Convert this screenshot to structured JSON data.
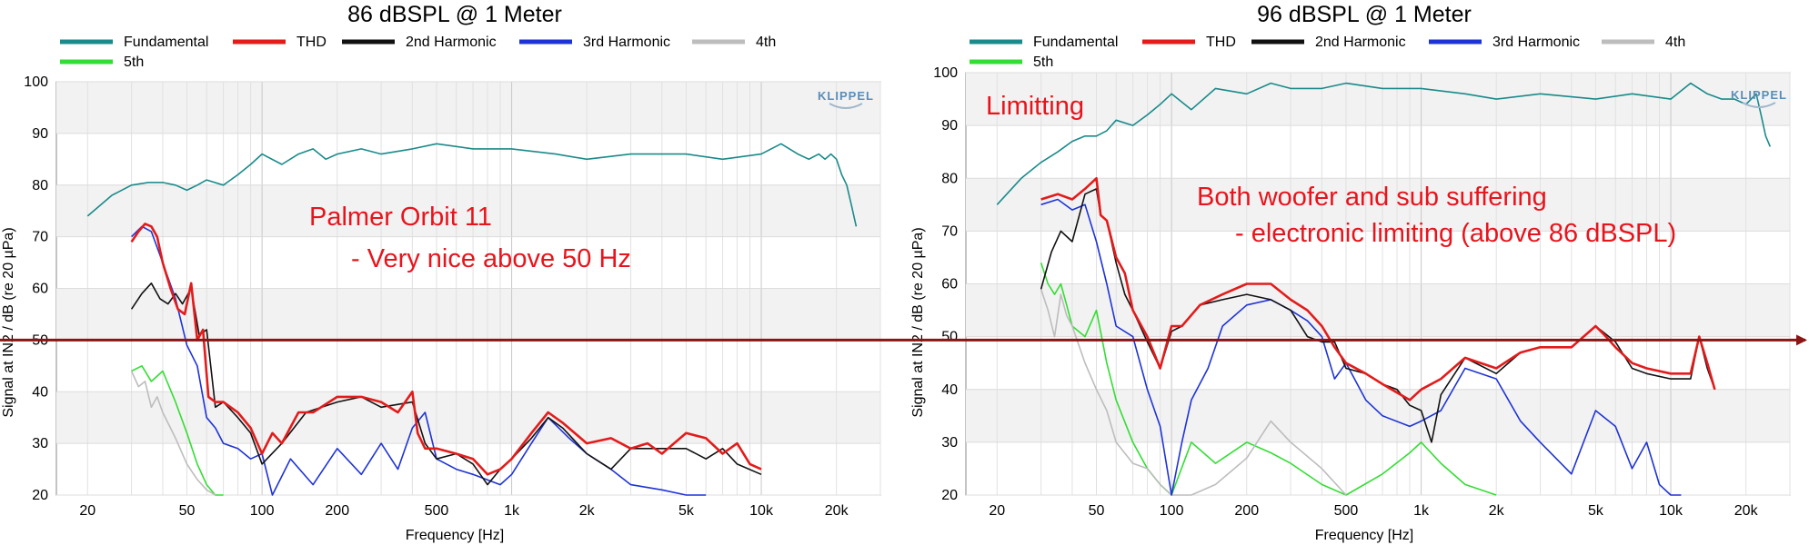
{
  "chart_data": [
    {
      "type": "line",
      "title": "86 dBSPL @ 1 Meter",
      "xlabel": "Frequency [Hz]",
      "ylabel": "Signal at IN2 / dB (re 20 µPa)",
      "xscale": "log",
      "xlim": [
        15,
        30000
      ],
      "ylim": [
        20,
        100
      ],
      "xticks": [
        20,
        50,
        100,
        200,
        500,
        1000,
        2000,
        5000,
        10000,
        20000
      ],
      "xtick_labels": [
        "20",
        "50",
        "100",
        "200",
        "500",
        "1k",
        "2k",
        "5k",
        "10k",
        "20k"
      ],
      "yticks": [
        20,
        30,
        40,
        50,
        60,
        70,
        80,
        90,
        100
      ],
      "grid": true,
      "legend_position": "top",
      "logo": "KLIPPEL",
      "annotations": [
        "Palmer Orbit 11",
        "-  Very nice above 50 Hz"
      ],
      "reference_line": 50,
      "series": [
        {
          "name": "Fundamental",
          "color": "#1a8a8a",
          "x": [
            20,
            25,
            30,
            35,
            40,
            45,
            50,
            55,
            60,
            70,
            80,
            90,
            100,
            120,
            140,
            160,
            180,
            200,
            250,
            300,
            400,
            500,
            700,
            1000,
            1500,
            2000,
            3000,
            5000,
            7000,
            10000,
            12000,
            14000,
            15500,
            17000,
            18000,
            19000,
            20000,
            21000,
            22000,
            23000,
            24000
          ],
          "y": [
            74,
            78,
            80,
            80.5,
            80.5,
            80,
            79,
            80,
            81,
            80,
            82,
            84,
            86,
            84,
            86,
            87,
            85,
            86,
            87,
            86,
            87,
            88,
            87,
            87,
            86,
            85,
            86,
            86,
            85,
            86,
            88,
            86,
            85,
            86,
            85,
            86,
            85,
            82,
            80,
            76,
            72
          ]
        },
        {
          "name": "THD",
          "color": "#e31b1b",
          "x": [
            30,
            32,
            34,
            36,
            38,
            40,
            43,
            46,
            49,
            52,
            55,
            58,
            61,
            65,
            70,
            80,
            90,
            100,
            110,
            120,
            140,
            160,
            200,
            250,
            300,
            350,
            400,
            420,
            450,
            500,
            600,
            700,
            800,
            900,
            1000,
            1200,
            1400,
            1600,
            2000,
            2500,
            3000,
            3500,
            4000,
            5000,
            6000,
            7000,
            8000,
            9000,
            10000
          ],
          "y": [
            69,
            71,
            72.5,
            72,
            70,
            65,
            60,
            56,
            55,
            61,
            50,
            52,
            39,
            38,
            38,
            36,
            33,
            28,
            32,
            30,
            36,
            36,
            39,
            39,
            38,
            36,
            40,
            32,
            29,
            29,
            28,
            27,
            24,
            25,
            27,
            32,
            36,
            34,
            30,
            31,
            29,
            30,
            28,
            32,
            31,
            28,
            30,
            26,
            25
          ]
        },
        {
          "name": "2nd Harmonic",
          "color": "#111111",
          "x": [
            30,
            33,
            36,
            39,
            42,
            45,
            48,
            52,
            56,
            60,
            65,
            70,
            80,
            90,
            100,
            120,
            150,
            200,
            250,
            300,
            400,
            450,
            500,
            600,
            700,
            800,
            900,
            1000,
            1200,
            1400,
            1600,
            2000,
            2500,
            3000,
            4000,
            5000,
            6000,
            7000,
            8000,
            10000
          ],
          "y": [
            56,
            59,
            61,
            58,
            57,
            59,
            57,
            60,
            51,
            52,
            37,
            38,
            35,
            32,
            26,
            30,
            36,
            38,
            39,
            37,
            38,
            30,
            27,
            28,
            26,
            22,
            25,
            27,
            31,
            35,
            33,
            28,
            25,
            29,
            29,
            29,
            27,
            29,
            26,
            24
          ]
        },
        {
          "name": "3rd Harmonic",
          "color": "#1e33d6",
          "x": [
            30,
            33,
            36,
            40,
            45,
            50,
            55,
            60,
            65,
            70,
            80,
            90,
            100,
            110,
            130,
            160,
            200,
            250,
            300,
            350,
            400,
            450,
            500,
            600,
            700,
            900,
            1000,
            1200,
            1400,
            1700,
            2000,
            2500,
            3000,
            4000,
            5000,
            6000
          ],
          "y": [
            70,
            72,
            71,
            65,
            58,
            49,
            45,
            35,
            33,
            30,
            29,
            27,
            28,
            20,
            27,
            22,
            29,
            24,
            30,
            25,
            33,
            36,
            27,
            25,
            24,
            22,
            24,
            30,
            35,
            31,
            28,
            25,
            22,
            21,
            20,
            20
          ]
        },
        {
          "name": "4th",
          "color": "#bdbdbd",
          "x": [
            30,
            32,
            34,
            36,
            38,
            40,
            45,
            50,
            55,
            60,
            65
          ],
          "y": [
            44,
            41,
            42,
            37,
            39,
            36,
            31,
            26,
            23,
            21,
            20
          ]
        },
        {
          "name": "5th",
          "color": "#33dd33",
          "x": [
            30,
            33,
            36,
            40,
            45,
            50,
            55,
            60,
            65,
            70
          ],
          "y": [
            44,
            45,
            42,
            44,
            38,
            32,
            26,
            22,
            20,
            20
          ]
        }
      ]
    },
    {
      "type": "line",
      "title": "96 dBSPL @ 1 Meter",
      "xlabel": "Frequency [Hz]",
      "ylabel": "Signal at IN2 / dB (re 20 µPa)",
      "xscale": "log",
      "xlim": [
        15,
        30000
      ],
      "ylim": [
        20,
        100
      ],
      "xticks": [
        20,
        50,
        100,
        200,
        500,
        1000,
        2000,
        5000,
        10000,
        20000
      ],
      "xtick_labels": [
        "20",
        "50",
        "100",
        "200",
        "500",
        "1k",
        "2k",
        "5k",
        "10k",
        "20k"
      ],
      "yticks": [
        20,
        30,
        40,
        50,
        60,
        70,
        80,
        90,
        100
      ],
      "grid": true,
      "legend_position": "top",
      "logo": "KLIPPEL",
      "annotations": [
        "Limitting",
        "Both woofer and sub suffering",
        "-  electronic limiting (above 86 dBSPL)"
      ],
      "reference_line": 50,
      "series": [
        {
          "name": "Fundamental",
          "color": "#1a8a8a",
          "x": [
            20,
            25,
            30,
            35,
            40,
            45,
            50,
            55,
            60,
            70,
            80,
            90,
            100,
            120,
            150,
            200,
            250,
            300,
            400,
            500,
            700,
            1000,
            1500,
            2000,
            3000,
            5000,
            7000,
            10000,
            12000,
            14000,
            16000,
            18000,
            20000,
            22000,
            23000,
            24000,
            25000
          ],
          "y": [
            75,
            80,
            83,
            85,
            87,
            88,
            88,
            89,
            91,
            90,
            92,
            94,
            96,
            93,
            97,
            96,
            98,
            97,
            97,
            98,
            97,
            97,
            96,
            95,
            96,
            95,
            96,
            95,
            98,
            96,
            95,
            95,
            94,
            96,
            92,
            88,
            86
          ]
        },
        {
          "name": "THD",
          "color": "#e31b1b",
          "x": [
            30,
            35,
            40,
            45,
            50,
            52,
            55,
            60,
            65,
            70,
            80,
            90,
            100,
            110,
            130,
            160,
            200,
            250,
            300,
            350,
            400,
            450,
            500,
            600,
            700,
            900,
            1000,
            1200,
            1500,
            2000,
            2500,
            3000,
            4000,
            5000,
            5500,
            6000,
            7000,
            8000,
            10000,
            12000,
            13000,
            14000,
            15000
          ],
          "y": [
            76,
            77,
            76,
            78,
            80,
            73,
            72,
            65,
            62,
            55,
            50,
            44,
            52,
            52,
            56,
            58,
            60,
            60,
            57,
            55,
            52,
            48,
            45,
            43,
            41,
            38,
            40,
            42,
            46,
            44,
            47,
            48,
            48,
            52,
            50,
            48,
            45,
            44,
            43,
            43,
            50,
            45,
            40
          ]
        },
        {
          "name": "2nd Harmonic",
          "color": "#111111",
          "x": [
            30,
            33,
            36,
            40,
            45,
            50,
            52,
            55,
            60,
            65,
            70,
            80,
            90,
            100,
            110,
            130,
            160,
            200,
            250,
            300,
            350,
            400,
            450,
            500,
            600,
            700,
            800,
            900,
            1000,
            1100,
            1200,
            1500,
            2000,
            2500,
            3000,
            4000,
            5000,
            6000,
            7000,
            8000,
            10000,
            12000,
            13000,
            14000,
            15000
          ],
          "y": [
            59,
            66,
            70,
            68,
            77,
            78,
            73,
            72,
            64,
            58,
            55,
            49,
            44,
            51,
            52,
            56,
            57,
            58,
            57,
            55,
            50,
            49,
            49,
            44,
            43,
            41,
            40,
            37,
            36,
            30,
            39,
            46,
            43,
            47,
            48,
            48,
            52,
            49,
            44,
            43,
            42,
            42,
            50,
            44,
            40
          ]
        },
        {
          "name": "3rd Harmonic",
          "color": "#1e33d6",
          "x": [
            30,
            35,
            40,
            45,
            50,
            55,
            60,
            70,
            80,
            90,
            100,
            110,
            120,
            140,
            160,
            200,
            250,
            300,
            350,
            400,
            450,
            500,
            600,
            700,
            900,
            1000,
            1200,
            1500,
            2000,
            2500,
            3000,
            4000,
            5000,
            6000,
            7000,
            8000,
            9000,
            10000,
            11000
          ],
          "y": [
            75,
            76,
            74,
            75,
            68,
            60,
            52,
            50,
            40,
            33,
            20,
            30,
            38,
            44,
            52,
            56,
            57,
            55,
            53,
            50,
            42,
            45,
            38,
            35,
            33,
            34,
            36,
            44,
            42,
            34,
            30,
            24,
            36,
            33,
            25,
            30,
            22,
            20,
            20
          ]
        },
        {
          "name": "4th",
          "color": "#bdbdbd",
          "x": [
            30,
            32,
            34,
            36,
            38,
            40,
            45,
            50,
            55,
            60,
            70,
            80,
            90,
            100,
            120,
            150,
            200,
            250,
            300,
            400,
            500
          ],
          "y": [
            59,
            55,
            50,
            58,
            54,
            52,
            45,
            40,
            36,
            30,
            26,
            25,
            22,
            20,
            20,
            22,
            27,
            34,
            30,
            25,
            20
          ]
        },
        {
          "name": "5th",
          "color": "#33dd33",
          "x": [
            30,
            32,
            34,
            36,
            38,
            40,
            45,
            50,
            55,
            60,
            70,
            80,
            90,
            100,
            120,
            150,
            200,
            250,
            300,
            400,
            500,
            700,
            900,
            1000,
            1200,
            1500,
            2000
          ],
          "y": [
            64,
            60,
            58,
            60,
            56,
            52,
            50,
            55,
            45,
            38,
            30,
            25,
            22,
            20,
            30,
            26,
            30,
            28,
            26,
            22,
            20,
            24,
            28,
            30,
            26,
            22,
            20
          ]
        }
      ]
    }
  ]
}
